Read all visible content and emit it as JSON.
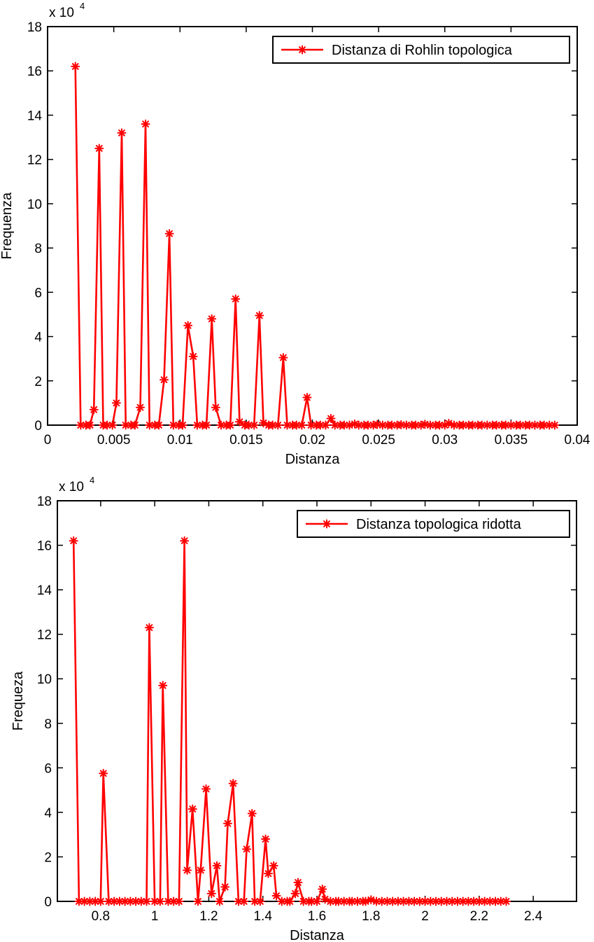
{
  "chart_data": [
    {
      "type": "line",
      "xlabel": "Distanza",
      "ylabel": "Frequenza",
      "xlim": [
        0,
        0.04
      ],
      "ylim": [
        0,
        180000
      ],
      "x_ticks": [
        "0",
        "0.005",
        "0.01",
        "0.015",
        "0.02",
        "0.025",
        "0.03",
        "0.035",
        "0.04"
      ],
      "x_tick_values": [
        0,
        0.005,
        0.01,
        0.015,
        0.02,
        0.025,
        0.03,
        0.035,
        0.04
      ],
      "y_ticks": [
        "0",
        "2",
        "4",
        "6",
        "8",
        "10",
        "12",
        "14",
        "16",
        "18"
      ],
      "y_tick_values": [
        0,
        20000,
        40000,
        60000,
        80000,
        100000,
        120000,
        140000,
        160000,
        180000
      ],
      "y_multiplier": {
        "base": "x 10",
        "exponent": "4"
      },
      "legend": {
        "position": "top-right",
        "entries": [
          "Distanza di Rohlin topologica"
        ]
      },
      "color": "#ff0000",
      "grid": false,
      "series": [
        {
          "name": "Distanza di Rohlin topologica",
          "points": [
            [
              0.0021,
              162000
            ],
            [
              0.0025,
              0
            ],
            [
              0.0029,
              0
            ],
            [
              0.0032,
              0
            ],
            [
              0.0035,
              7000
            ],
            [
              0.0039,
              125000
            ],
            [
              0.0042,
              0
            ],
            [
              0.0045,
              0
            ],
            [
              0.0049,
              0
            ],
            [
              0.0052,
              10000
            ],
            [
              0.0056,
              132000
            ],
            [
              0.0059,
              0
            ],
            [
              0.0063,
              0
            ],
            [
              0.0066,
              0
            ],
            [
              0.007,
              8000
            ],
            [
              0.0074,
              136000
            ],
            [
              0.0077,
              0
            ],
            [
              0.0081,
              0
            ],
            [
              0.0084,
              0
            ],
            [
              0.0088,
              20500
            ],
            [
              0.0092,
              86500
            ],
            [
              0.0095,
              0
            ],
            [
              0.0099,
              0
            ],
            [
              0.0102,
              0
            ],
            [
              0.0106,
              45000
            ],
            [
              0.011,
              31000
            ],
            [
              0.0113,
              0
            ],
            [
              0.0117,
              0
            ],
            [
              0.012,
              0
            ],
            [
              0.0124,
              48000
            ],
            [
              0.0127,
              8000
            ],
            [
              0.0131,
              0
            ],
            [
              0.0135,
              0
            ],
            [
              0.0138,
              0
            ],
            [
              0.0142,
              57000
            ],
            [
              0.0145,
              1500
            ],
            [
              0.0149,
              0
            ],
            [
              0.0152,
              0
            ],
            [
              0.0156,
              0
            ],
            [
              0.016,
              49500
            ],
            [
              0.0163,
              1000
            ],
            [
              0.0167,
              0
            ],
            [
              0.017,
              0
            ],
            [
              0.0174,
              0
            ],
            [
              0.0178,
              30500
            ],
            [
              0.0181,
              0
            ],
            [
              0.0185,
              0
            ],
            [
              0.0188,
              0
            ],
            [
              0.0192,
              0
            ],
            [
              0.0196,
              12500
            ],
            [
              0.0199,
              0
            ],
            [
              0.0203,
              0
            ],
            [
              0.0206,
              0
            ],
            [
              0.021,
              0
            ],
            [
              0.0214,
              3000
            ],
            [
              0.0217,
              0
            ],
            [
              0.0221,
              0
            ],
            [
              0.0224,
              0
            ],
            [
              0.0228,
              0
            ],
            [
              0.0232,
              500
            ],
            [
              0.0235,
              0
            ],
            [
              0.0239,
              0
            ],
            [
              0.0242,
              0
            ],
            [
              0.0246,
              0
            ],
            [
              0.0249,
              300
            ],
            [
              0.0253,
              0
            ],
            [
              0.0257,
              0
            ],
            [
              0.026,
              0
            ],
            [
              0.0264,
              0
            ],
            [
              0.0267,
              200
            ],
            [
              0.0271,
              0
            ],
            [
              0.0275,
              0
            ],
            [
              0.0278,
              0
            ],
            [
              0.0282,
              0
            ],
            [
              0.0285,
              400
            ],
            [
              0.0289,
              0
            ],
            [
              0.0293,
              0
            ],
            [
              0.0296,
              0
            ],
            [
              0.03,
              0
            ],
            [
              0.0303,
              800
            ],
            [
              0.0307,
              0
            ],
            [
              0.0311,
              0
            ],
            [
              0.0314,
              0
            ],
            [
              0.0318,
              0
            ],
            [
              0.0321,
              0
            ],
            [
              0.0325,
              0
            ],
            [
              0.0328,
              0
            ],
            [
              0.0332,
              0
            ],
            [
              0.0336,
              0
            ],
            [
              0.0339,
              0
            ],
            [
              0.0343,
              0
            ],
            [
              0.0346,
              0
            ],
            [
              0.035,
              0
            ],
            [
              0.0354,
              0
            ],
            [
              0.0357,
              0
            ],
            [
              0.0361,
              0
            ],
            [
              0.0364,
              0
            ],
            [
              0.0368,
              0
            ],
            [
              0.0372,
              0
            ],
            [
              0.0375,
              0
            ],
            [
              0.0379,
              0
            ],
            [
              0.0383,
              0
            ]
          ]
        }
      ]
    },
    {
      "type": "line",
      "xlabel": "Distanza",
      "ylabel": "Frequeza",
      "xlim": [
        0.64,
        2.56
      ],
      "ylim": [
        0,
        180000
      ],
      "x_ticks": [
        "0.8",
        "1",
        "1.2",
        "1.4",
        "1.6",
        "1.8",
        "2",
        "2.2",
        "2.4"
      ],
      "x_tick_values": [
        0.8,
        1.0,
        1.2,
        1.4,
        1.6,
        1.8,
        2.0,
        2.2,
        2.4
      ],
      "y_ticks": [
        "0",
        "2",
        "4",
        "6",
        "8",
        "10",
        "12",
        "14",
        "16",
        "18"
      ],
      "y_tick_values": [
        0,
        20000,
        40000,
        60000,
        80000,
        100000,
        120000,
        140000,
        160000,
        180000
      ],
      "y_multiplier": {
        "base": "x 10",
        "exponent": "4"
      },
      "legend": {
        "position": "top-right",
        "entries": [
          "Distanza topologica ridotta"
        ]
      },
      "color": "#ff0000",
      "grid": false,
      "series": [
        {
          "name": "Distanza topologica ridotta",
          "points": [
            [
              0.7,
              162000
            ],
            [
              0.72,
              0
            ],
            [
              0.74,
              0
            ],
            [
              0.76,
              0
            ],
            [
              0.78,
              0
            ],
            [
              0.8,
              0
            ],
            [
              0.81,
              57500
            ],
            [
              0.83,
              0
            ],
            [
              0.85,
              0
            ],
            [
              0.87,
              0
            ],
            [
              0.89,
              0
            ],
            [
              0.91,
              0
            ],
            [
              0.93,
              0
            ],
            [
              0.95,
              0
            ],
            [
              0.97,
              0
            ],
            [
              0.98,
              123000
            ],
            [
              1.0,
              0
            ],
            [
              1.02,
              0
            ],
            [
              1.03,
              97000
            ],
            [
              1.05,
              0
            ],
            [
              1.07,
              0
            ],
            [
              1.09,
              0
            ],
            [
              1.11,
              162000
            ],
            [
              1.12,
              14000
            ],
            [
              1.14,
              41500
            ],
            [
              1.16,
              0
            ],
            [
              1.17,
              14000
            ],
            [
              1.19,
              50500
            ],
            [
              1.21,
              3500
            ],
            [
              1.23,
              16000
            ],
            [
              1.24,
              0
            ],
            [
              1.26,
              6500
            ],
            [
              1.27,
              35000
            ],
            [
              1.29,
              53000
            ],
            [
              1.31,
              0
            ],
            [
              1.33,
              0
            ],
            [
              1.34,
              23500
            ],
            [
              1.36,
              39500
            ],
            [
              1.37,
              0
            ],
            [
              1.39,
              0
            ],
            [
              1.41,
              28000
            ],
            [
              1.42,
              12500
            ],
            [
              1.44,
              16000
            ],
            [
              1.45,
              2500
            ],
            [
              1.47,
              0
            ],
            [
              1.49,
              0
            ],
            [
              1.5,
              0
            ],
            [
              1.52,
              3500
            ],
            [
              1.53,
              8500
            ],
            [
              1.55,
              0
            ],
            [
              1.57,
              0
            ],
            [
              1.58,
              0
            ],
            [
              1.6,
              0
            ],
            [
              1.62,
              5500
            ],
            [
              1.63,
              1000
            ],
            [
              1.65,
              0
            ],
            [
              1.67,
              0
            ],
            [
              1.68,
              0
            ],
            [
              1.7,
              0
            ],
            [
              1.72,
              0
            ],
            [
              1.73,
              0
            ],
            [
              1.75,
              0
            ],
            [
              1.77,
              0
            ],
            [
              1.78,
              0
            ],
            [
              1.8,
              700
            ],
            [
              1.82,
              0
            ],
            [
              1.84,
              0
            ],
            [
              1.86,
              0
            ],
            [
              1.88,
              0
            ],
            [
              1.9,
              0
            ],
            [
              1.92,
              0
            ],
            [
              1.94,
              0
            ],
            [
              1.96,
              0
            ],
            [
              1.98,
              0
            ],
            [
              2.0,
              0
            ],
            [
              2.02,
              0
            ],
            [
              2.04,
              0
            ],
            [
              2.06,
              0
            ],
            [
              2.08,
              0
            ],
            [
              2.1,
              0
            ],
            [
              2.12,
              0
            ],
            [
              2.14,
              0
            ],
            [
              2.16,
              0
            ],
            [
              2.18,
              0
            ],
            [
              2.2,
              0
            ],
            [
              2.22,
              0
            ],
            [
              2.24,
              0
            ],
            [
              2.26,
              0
            ],
            [
              2.28,
              0
            ],
            [
              2.3,
              0
            ]
          ]
        }
      ]
    }
  ]
}
